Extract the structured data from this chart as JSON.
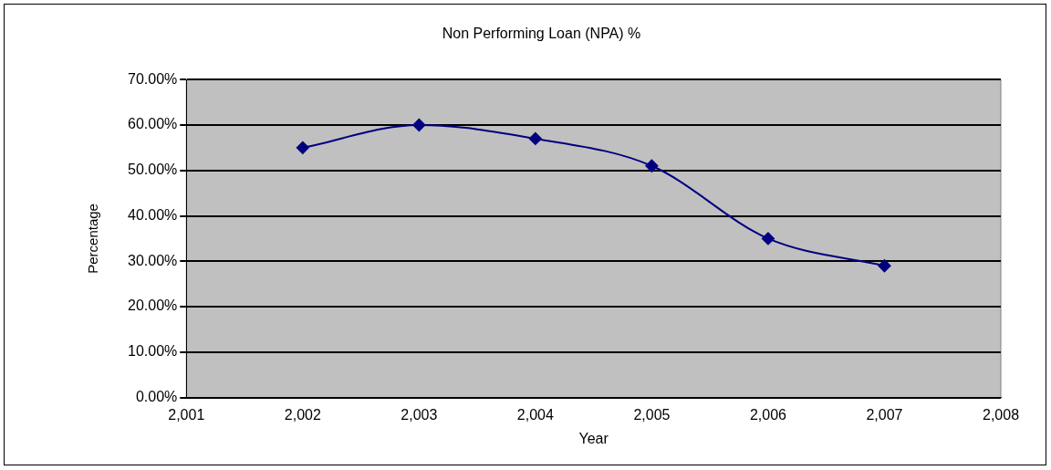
{
  "chart_data": {
    "type": "line",
    "title": "Non Performing Loan (NPA) %",
    "xlabel": "Year",
    "ylabel": "Percentage",
    "x": [
      2002,
      2003,
      2004,
      2005,
      2006,
      2007
    ],
    "series": [
      {
        "color": "#000080",
        "values": [
          55,
          60,
          57,
          51,
          35,
          29
        ]
      }
    ],
    "xlim": [
      2001,
      2008
    ],
    "xticks": [
      {
        "value": 2001,
        "label": "2,001"
      },
      {
        "value": 2002,
        "label": "2,002"
      },
      {
        "value": 2003,
        "label": "2,003"
      },
      {
        "value": 2004,
        "label": "2,004"
      },
      {
        "value": 2005,
        "label": "2,005"
      },
      {
        "value": 2006,
        "label": "2,006"
      },
      {
        "value": 2007,
        "label": "2,007"
      },
      {
        "value": 2008,
        "label": "2,008"
      }
    ],
    "ylim": [
      0,
      70
    ],
    "yticks": [
      {
        "value": 0,
        "label": "0.00%"
      },
      {
        "value": 10,
        "label": "10.00%"
      },
      {
        "value": 20,
        "label": "20.00%"
      },
      {
        "value": 30,
        "label": "30.00%"
      },
      {
        "value": 40,
        "label": "40.00%"
      },
      {
        "value": 50,
        "label": "50.00%"
      },
      {
        "value": 60,
        "label": "60.00%"
      },
      {
        "value": 70,
        "label": "70.00%"
      }
    ],
    "grid": "y",
    "legend": false,
    "marker": "diamond",
    "line_style": "solid"
  }
}
